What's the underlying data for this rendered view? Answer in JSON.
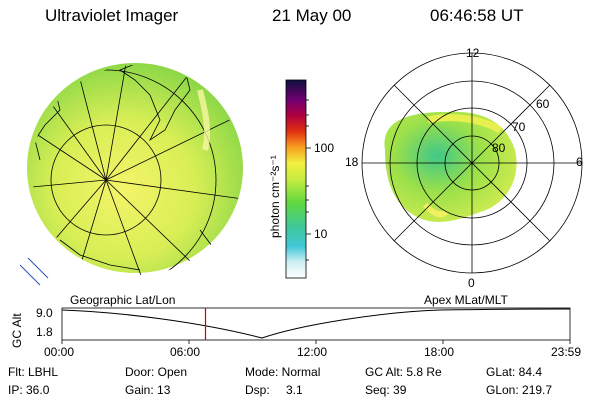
{
  "header": {
    "instrument": "Ultraviolet Imager",
    "date": "21 May 00",
    "time": "06:46:58 UT"
  },
  "colorbar": {
    "unit_label": "photon cm⁻²s⁻¹",
    "ticks": [
      "100",
      "10"
    ]
  },
  "left_panel": {
    "caption": "Geographic Lat/Lon"
  },
  "right_panel": {
    "caption": "Apex MLat/MLT",
    "mlt_labels": [
      "12",
      "18",
      "6",
      "0"
    ],
    "lat_labels": [
      "60",
      "70",
      "80"
    ]
  },
  "altitude_plot": {
    "ylabel": "GC Alt",
    "y_ticks": [
      "9.0",
      "1.8"
    ],
    "x_ticks": [
      "00:00",
      "06:00",
      "12:00",
      "18:00",
      "23:59"
    ],
    "marker_time_hours": 6.78
  },
  "status": {
    "filter": "Flt: LBHL",
    "ip": "IP: 36.0",
    "door": "Door: Open",
    "gain": "Gain: 13",
    "mode": "Mode: Normal",
    "dsp_label": "Dsp:",
    "dsp_value": "3.1",
    "gc_alt": "GC Alt: 5.8 Re",
    "seq": "Seq: 39",
    "glat": "GLat: 84.4",
    "glon": "GLon: 219.7"
  },
  "colors": {
    "background": "#ffffff",
    "marker": "#cc0000",
    "aurora_low": "#9be04a",
    "aurora_high": "#e8f050"
  }
}
